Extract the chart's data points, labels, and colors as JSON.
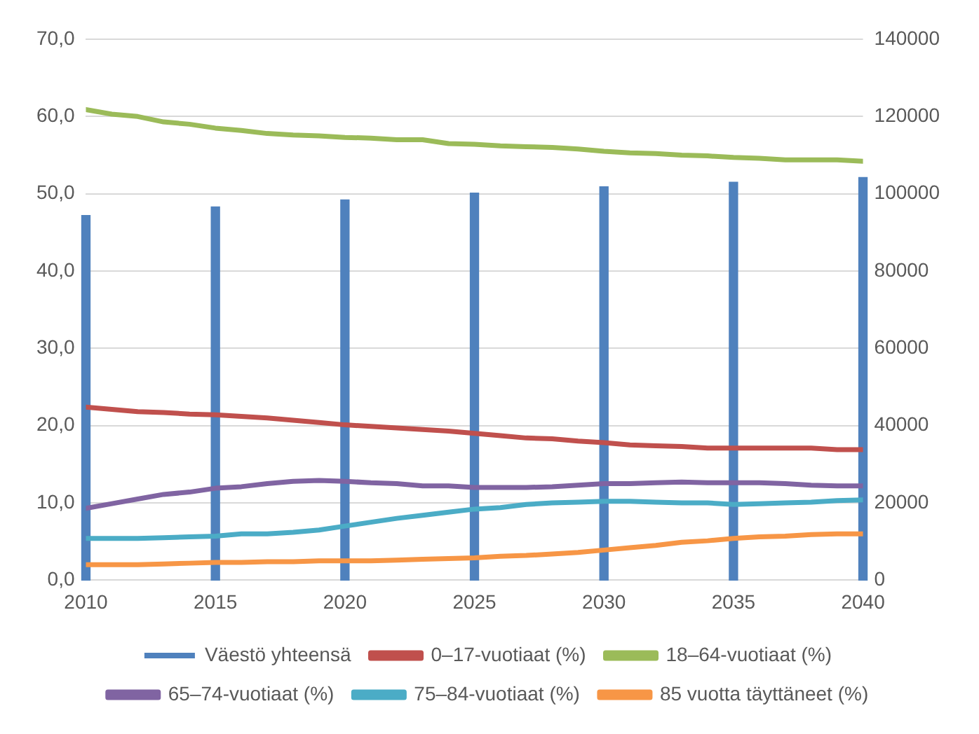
{
  "chart_data": {
    "type": "line",
    "x": [
      2010,
      2011,
      2012,
      2013,
      2014,
      2015,
      2016,
      2017,
      2018,
      2019,
      2020,
      2021,
      2022,
      2023,
      2024,
      2025,
      2026,
      2027,
      2028,
      2029,
      2030,
      2031,
      2032,
      2033,
      2034,
      2035,
      2036,
      2037,
      2038,
      2039,
      2040
    ],
    "xlim": [
      2010,
      2040
    ],
    "xticks": [
      2010,
      2015,
      2020,
      2025,
      2030,
      2035,
      2040
    ],
    "ylim": [
      0,
      70
    ],
    "yticks": [
      {
        "value": 0,
        "label": "0,0"
      },
      {
        "value": 10,
        "label": "10,0"
      },
      {
        "value": 20,
        "label": "20,0"
      },
      {
        "value": 30,
        "label": "30,0"
      },
      {
        "value": 40,
        "label": "40,0"
      },
      {
        "value": 50,
        "label": "50,0"
      },
      {
        "value": 60,
        "label": "60,0"
      },
      {
        "value": 70,
        "label": "70,0"
      }
    ],
    "y2lim": [
      0,
      140000
    ],
    "y2ticks": [
      0,
      20000,
      40000,
      60000,
      80000,
      100000,
      120000,
      140000
    ],
    "grid": "y",
    "legend": "bottom",
    "marker": "none",
    "line_style": "solid",
    "series": [
      {
        "name": "Väestö yhteensä",
        "type": "bar",
        "axis": "y2",
        "color": "#4f81bd",
        "x": [
          2010,
          2015,
          2020,
          2025,
          2030,
          2035,
          2040
        ],
        "values": [
          94400,
          96600,
          98400,
          100200,
          101800,
          103000,
          104200
        ]
      },
      {
        "name": "0–17-vuotiaat (%)",
        "color": "#c0504d",
        "values": [
          22.4,
          22.1,
          21.8,
          21.7,
          21.5,
          21.4,
          21.2,
          21.0,
          20.7,
          20.4,
          20.1,
          19.9,
          19.7,
          19.5,
          19.3,
          19.0,
          18.7,
          18.4,
          18.3,
          18.0,
          17.8,
          17.5,
          17.4,
          17.3,
          17.1,
          17.1,
          17.1,
          17.1,
          17.1,
          16.9,
          16.9
        ]
      },
      {
        "name": "18–64-vuotiaat (%)",
        "color": "#9bbb59",
        "values": [
          60.9,
          60.3,
          60.0,
          59.3,
          59.0,
          58.5,
          58.2,
          57.8,
          57.6,
          57.5,
          57.3,
          57.2,
          57.0,
          57.0,
          56.5,
          56.4,
          56.2,
          56.1,
          56.0,
          55.8,
          55.5,
          55.3,
          55.2,
          55.0,
          54.9,
          54.7,
          54.6,
          54.4,
          54.4,
          54.4,
          54.2
        ]
      },
      {
        "name": "65–74-vuotiaat (%)",
        "color": "#8064a2",
        "values": [
          9.3,
          9.9,
          10.5,
          11.1,
          11.4,
          11.9,
          12.1,
          12.5,
          12.8,
          12.9,
          12.8,
          12.6,
          12.5,
          12.2,
          12.2,
          12.0,
          12.0,
          12.0,
          12.1,
          12.3,
          12.5,
          12.5,
          12.6,
          12.7,
          12.6,
          12.6,
          12.6,
          12.5,
          12.3,
          12.2,
          12.2
        ]
      },
      {
        "name": "75–84-vuotiaat (%)",
        "color": "#4bacc6",
        "values": [
          5.4,
          5.4,
          5.4,
          5.5,
          5.6,
          5.7,
          6.0,
          6.0,
          6.2,
          6.5,
          7.0,
          7.5,
          8.0,
          8.4,
          8.8,
          9.2,
          9.4,
          9.8,
          10.0,
          10.1,
          10.2,
          10.2,
          10.1,
          10.0,
          10.0,
          9.8,
          9.9,
          10.0,
          10.1,
          10.3,
          10.4
        ]
      },
      {
        "name": "85 vuotta täyttäneet (%)",
        "color": "#f79646",
        "values": [
          2.0,
          2.0,
          2.0,
          2.1,
          2.2,
          2.3,
          2.3,
          2.4,
          2.4,
          2.5,
          2.5,
          2.5,
          2.6,
          2.7,
          2.8,
          2.9,
          3.1,
          3.2,
          3.4,
          3.6,
          3.9,
          4.2,
          4.5,
          4.9,
          5.1,
          5.4,
          5.6,
          5.7,
          5.9,
          6.0,
          6.0
        ]
      }
    ]
  }
}
